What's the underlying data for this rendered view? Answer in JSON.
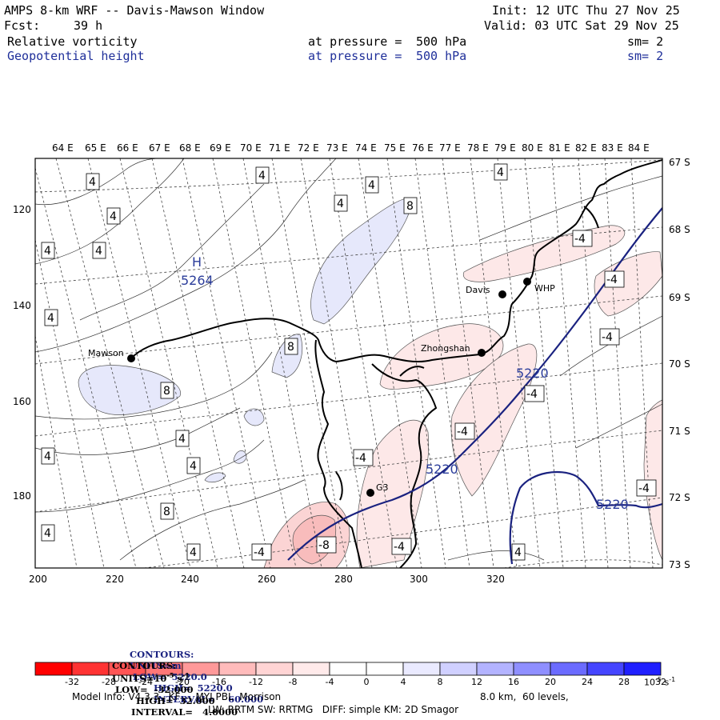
{
  "header": {
    "title": "AMPS 8-km WRF -- Davis-Mawson Window",
    "init": "Init: 12 UTC Thu 27 Nov 25",
    "fcst_label": "Fcst:",
    "fcst_value": "39 h",
    "valid": "Valid: 03 UTC Sat 29 Nov 25",
    "field1": {
      "name": "Relative vorticity",
      "level_label": "at pressure =",
      "level": "500 hPa",
      "sm": "sm= 2"
    },
    "field2": {
      "name": "Geopotential height",
      "level_label": "at pressure =",
      "level": "500 hPa",
      "sm": "sm= 2"
    }
  },
  "map": {
    "lon_labels": [
      "64 E",
      "65 E",
      "66 E",
      "67 E",
      "68 E",
      "69 E",
      "70 E",
      "71 E",
      "72 E",
      "73 E",
      "74 E",
      "75 E",
      "76 E",
      "77 E",
      "78 E",
      "79 E",
      "80 E",
      "81 E",
      "82 E",
      "83 E",
      "84 E"
    ],
    "lat_labels": [
      "67 S",
      "68 S",
      "69 S",
      "70 S",
      "71 S",
      "72 S",
      "73 S"
    ],
    "x_ticks": [
      "200",
      "220",
      "240",
      "260",
      "280",
      "300",
      "320"
    ],
    "y_ticks": [
      "120",
      "140",
      "160",
      "180"
    ],
    "stations": [
      {
        "name": "Mawson",
        "id": "mawson"
      },
      {
        "name": "Davis",
        "id": "davis"
      },
      {
        "name": "WHP",
        "id": "whp"
      },
      {
        "name": "Zhongshan",
        "id": "zhongshan"
      },
      {
        "name": "G3",
        "id": "g3"
      }
    ],
    "high_label": "H",
    "high_value": "5264",
    "height_contour_labels": [
      "5220",
      "5220",
      "5220"
    ],
    "vort_labels": [
      "4",
      "4",
      "4",
      "4",
      "4",
      "4",
      "4",
      "4",
      "4",
      "4",
      "4",
      "4",
      "4",
      "4",
      "4",
      "8",
      "8",
      "8",
      "8",
      "-4",
      "-4",
      "-4",
      "-4",
      "-4",
      "-4",
      "-4",
      "-4",
      "-4",
      "-8",
      "4",
      "4"
    ]
  },
  "contours": {
    "line1": {
      "label": "CONTOURS:",
      "units": "UNITS=m",
      "low": "LOW=  5220.0",
      "high": "HIGH=  5220.0",
      "interval": "INTERVAL=    60.000"
    },
    "line2": {
      "label": "CONTOURS:",
      "units": "UNITS=10",
      "units_exp": "-5",
      "units_tail": " s",
      "units_tail_exp": "-1",
      "low": "LOW=  -32.000",
      "high": "HIGH=  32.000",
      "interval": "INTERVAL=   4.0000"
    }
  },
  "colorbar": {
    "tick_labels": [
      "-32",
      "-28",
      "-24",
      "-20",
      "-16",
      "-12",
      "-8",
      "-4",
      "0",
      "4",
      "8",
      "12",
      "16",
      "20",
      "24",
      "28",
      "32"
    ],
    "units_label": "10",
    "units_exp": "-5",
    "units_tail": " s",
    "units_tail_exp": "-1",
    "colors": [
      "#ff0000",
      "#ff3333",
      "#ff5555",
      "#ff7777",
      "#ff9999",
      "#ffbbbb",
      "#ffd4d4",
      "#ffeaea",
      "#ffffff",
      "#ffffff",
      "#eaeaff",
      "#d0d0ff",
      "#b3b3ff",
      "#8f8fff",
      "#6b6bff",
      "#4545ff",
      "#1f1fff"
    ]
  },
  "footer": {
    "line1_left": "Model Info: V4.3.3   KF     MYJ PBL  Morrison",
    "line1_right": "8.0 km,  60 levels,",
    "line2": "LW: RRTM SW: RRTMG   DIFF: simple KM: 2D Smagor"
  }
}
